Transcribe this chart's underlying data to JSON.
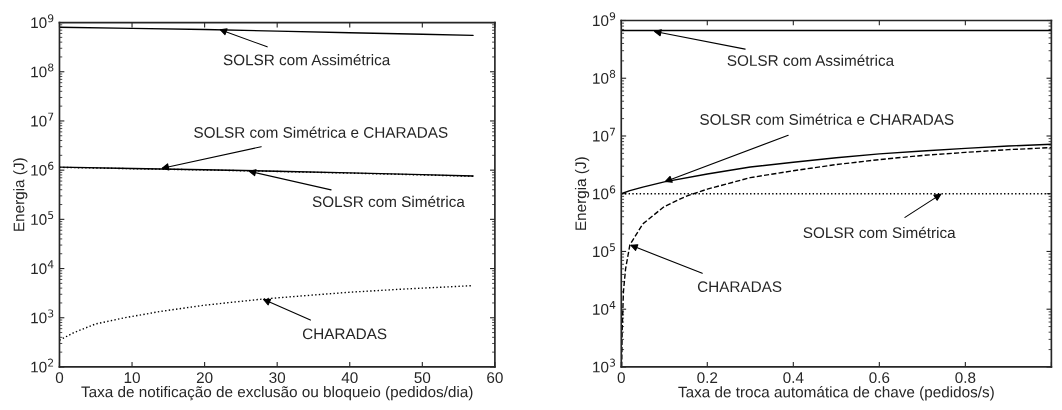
{
  "chart_data": [
    {
      "type": "line",
      "xlabel": "Taxa de notificação de exclusão ou bloqueio (pedidos/dia)",
      "ylabel": "Energia (J)",
      "log": "y",
      "grid": false,
      "xlim": [
        0,
        60
      ],
      "xticks": [
        0,
        10,
        20,
        30,
        40,
        50,
        60
      ],
      "ylim": [
        100,
        1000000000
      ],
      "yticks": [
        {
          "value": 100,
          "label": "10$^{2}$"
        },
        {
          "value": 1000,
          "label": "10$^{3}$"
        },
        {
          "value": 10000,
          "label": "10$^{4}$"
        },
        {
          "value": 100000,
          "label": "10$^{5}$"
        },
        {
          "value": 1000000,
          "label": "10$^{6}$"
        },
        {
          "value": 10000000,
          "label": "10$^{7}$"
        },
        {
          "value": 100000000,
          "label": "10$^{8}$"
        },
        {
          "value": 1000000000,
          "label": "10$^{9}$"
        }
      ],
      "series": [
        {
          "color": "#000000",
          "line_style": "solid",
          "x": [
            0,
            10,
            20,
            30,
            40,
            50,
            57
          ],
          "values": [
            800000000,
            760000000,
            720000000,
            670000000,
            620000000,
            580000000,
            550000000
          ]
        },
        {
          "color": "#000000",
          "line_style": "solid",
          "x": [
            0,
            10,
            20,
            30,
            40,
            50,
            57
          ],
          "values": [
            1150000,
            1080000,
            1020000,
            950000,
            880000,
            810000,
            760000
          ]
        },
        {
          "color": "#000000",
          "line_style": "dotted",
          "x": [
            0,
            10,
            20,
            30,
            40,
            50,
            57
          ],
          "values": [
            1140000,
            1070000,
            1010000,
            940000,
            870000,
            800000,
            750000
          ]
        },
        {
          "color": "#000000",
          "line_style": "dotted",
          "x": [
            0,
            2,
            5,
            9,
            14,
            20,
            28,
            35,
            40,
            47,
            57
          ],
          "values": [
            350,
            500,
            750,
            1000,
            1350,
            1800,
            2400,
            2900,
            3300,
            3800,
            4500
          ]
        }
      ],
      "annotations": [
        {
          "text": "SOLSR com Assimétrica",
          "x": 22,
          "y": 730000000
        },
        {
          "text": "SOLSR com Simétrica e CHARADAS",
          "x": 14,
          "y": 1080000
        },
        {
          "text": "SOLSR com Simétrica",
          "x": 26,
          "y": 960000
        },
        {
          "text": "CHARADAS",
          "x": 28,
          "y": 2400
        }
      ]
    },
    {
      "type": "line",
      "xlabel": "Taxa de troca automática de chave (pedidos/s)",
      "ylabel": "Energia (J)",
      "log": "y",
      "grid": false,
      "xlim": [
        0,
        1
      ],
      "xticks": [
        0,
        0.2,
        0.4,
        0.6,
        0.8,
        {
          "value": 1,
          "label": null
        }
      ],
      "ylim": [
        1000,
        1000000000
      ],
      "yticks": [
        {
          "value": 1000,
          "label": "10$^{3}$"
        },
        {
          "value": 10000,
          "label": "10$^{4}$"
        },
        {
          "value": 100000,
          "label": "10$^{5}$"
        },
        {
          "value": 1000000,
          "label": "10$^{6}$"
        },
        {
          "value": 10000000,
          "label": "10$^{7}$"
        },
        {
          "value": 100000000,
          "label": "10$^{8}$"
        },
        {
          "value": 1000000000,
          "label": "10$^{9}$"
        }
      ],
      "series": [
        {
          "color": "#000000",
          "line_style": "solid",
          "x": [
            0,
            1
          ],
          "values": [
            670000000,
            670000000
          ]
        },
        {
          "color": "#000000",
          "line_style": "dotted",
          "x": [
            0,
            1
          ],
          "values": [
            1000000,
            1000000
          ]
        },
        {
          "color": "#000000",
          "line_style": "solid",
          "x": [
            0,
            0.02,
            0.05,
            0.1,
            0.2,
            0.3,
            0.4,
            0.5,
            0.6,
            0.7,
            0.8,
            0.9,
            1.0
          ],
          "values": [
            1000000,
            1130000,
            1300000,
            1600000,
            2200000,
            2900000,
            3500000,
            4200000,
            4900000,
            5500000,
            6100000,
            6700000,
            7200000
          ]
        },
        {
          "color": "#000000",
          "line_style": "dashed",
          "x": [
            0.001,
            0.002,
            0.005,
            0.01,
            0.02,
            0.05,
            0.1,
            0.15,
            0.2,
            0.3,
            0.4,
            0.5,
            0.6,
            0.7,
            0.8,
            0.9,
            1.0
          ],
          "values": [
            1000,
            4000,
            20000,
            50000,
            130000,
            300000,
            600000,
            900000,
            1200000,
            1900000,
            2500000,
            3200000,
            3900000,
            4600000,
            5200000,
            5800000,
            6300000
          ]
        }
      ],
      "annotations": [
        {
          "text": "SOLSR com Assimétrica",
          "x": 0.075,
          "y": 650000000
        },
        {
          "text": "SOLSR com Simétrica e CHARADAS",
          "x": 0.1,
          "y": 1600000
        },
        {
          "text": "SOLSR com Simétrica",
          "x": 0.745,
          "y": 1000000
        },
        {
          "text": "CHARADAS",
          "x": 0.02,
          "y": 130000
        }
      ]
    }
  ]
}
